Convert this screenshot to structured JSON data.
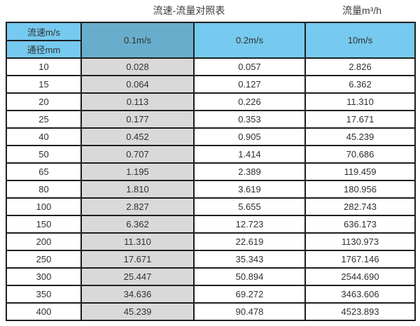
{
  "titles": {
    "main": "流速-流量对照表",
    "unit": "流量m³/h"
  },
  "table": {
    "corner_top": "流速m/s",
    "corner_bottom": "通径mm",
    "columns": [
      "0.1m/s",
      "0.2m/s",
      "10m/s"
    ],
    "rows": [
      {
        "d": "10",
        "v": [
          "0.028",
          "0.057",
          "2.826"
        ]
      },
      {
        "d": "15",
        "v": [
          "0.064",
          "0.127",
          "6.362"
        ]
      },
      {
        "d": "20",
        "v": [
          "0.113",
          "0.226",
          "11.310"
        ]
      },
      {
        "d": "25",
        "v": [
          "0.177",
          "0.353",
          "17.671"
        ]
      },
      {
        "d": "40",
        "v": [
          "0.452",
          "0.905",
          "45.239"
        ]
      },
      {
        "d": "50",
        "v": [
          "0.707",
          "1.414",
          "70.686"
        ]
      },
      {
        "d": "65",
        "v": [
          "1.195",
          "2.389",
          "119.459"
        ]
      },
      {
        "d": "80",
        "v": [
          "1.810",
          "3.619",
          "180.956"
        ]
      },
      {
        "d": "100",
        "v": [
          "2.827",
          "5.655",
          "282.743"
        ]
      },
      {
        "d": "150",
        "v": [
          "6.362",
          "12.723",
          "636.173"
        ]
      },
      {
        "d": "200",
        "v": [
          "11.310",
          "22.619",
          "1130.973"
        ]
      },
      {
        "d": "250",
        "v": [
          "17.671",
          "35.343",
          "1767.146"
        ]
      },
      {
        "d": "300",
        "v": [
          "25.447",
          "50.894",
          "2544.690"
        ]
      },
      {
        "d": "350",
        "v": [
          "34.636",
          "69.272",
          "3463.606"
        ]
      },
      {
        "d": "400",
        "v": [
          "45.239",
          "90.478",
          "4523.893"
        ]
      }
    ]
  },
  "colors": {
    "header-blue": "#76CAEF",
    "header-blue-dark": "#68AECC",
    "shaded-gray": "#D9D9D9",
    "border": "#1E1E1E",
    "text": "#303030",
    "title-text": "#3B3B3B"
  },
  "chart_data": {
    "type": "table",
    "title": "流速-流量对照表",
    "unit_label": "流量m³/h",
    "row_axis_label": "通径mm",
    "col_axis_label": "流速m/s",
    "columns": [
      "0.1m/s",
      "0.2m/s",
      "10m/s"
    ],
    "diameters_mm": [
      10,
      15,
      20,
      25,
      40,
      50,
      65,
      80,
      100,
      150,
      200,
      250,
      300,
      350,
      400
    ],
    "series": [
      {
        "name": "0.1m/s",
        "values": [
          0.028,
          0.064,
          0.113,
          0.177,
          0.452,
          0.707,
          1.195,
          1.81,
          2.827,
          6.362,
          11.31,
          17.671,
          25.447,
          34.636,
          45.239
        ]
      },
      {
        "name": "0.2m/s",
        "values": [
          0.057,
          0.127,
          0.226,
          0.353,
          0.905,
          1.414,
          2.389,
          3.619,
          5.655,
          12.723,
          22.619,
          35.343,
          50.894,
          69.272,
          90.478
        ]
      },
      {
        "name": "10m/s",
        "values": [
          2.826,
          6.362,
          11.31,
          17.671,
          45.239,
          70.686,
          119.459,
          180.956,
          282.743,
          636.173,
          1130.973,
          1767.146,
          2544.69,
          3463.606,
          4523.893
        ]
      }
    ]
  }
}
